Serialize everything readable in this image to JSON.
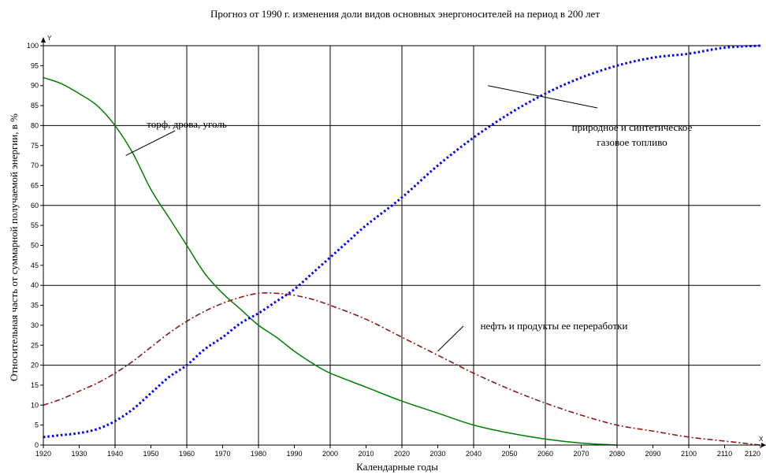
{
  "chart_data": {
    "type": "line",
    "title": "Прогноз от 1990 г. изменения доли видов основных энергоносителей на период  в 200 лет",
    "xlabel": "Календарные годы",
    "ylabel": "Относительная часть от суммарной  получаемой энергии,  в %",
    "x_axis_letter": "X",
    "y_axis_letter": "Y",
    "xlim": [
      1920,
      2120
    ],
    "ylim": [
      0,
      100
    ],
    "x_ticks": [
      1920,
      1930,
      1940,
      1950,
      1960,
      1970,
      1980,
      1990,
      2000,
      2010,
      2020,
      2030,
      2040,
      2050,
      2060,
      2070,
      2080,
      2090,
      2100,
      2110,
      2120
    ],
    "y_ticks": [
      0,
      5,
      10,
      15,
      20,
      25,
      30,
      35,
      40,
      45,
      50,
      55,
      60,
      65,
      70,
      75,
      80,
      85,
      90,
      95,
      100
    ],
    "grid_x": [
      1940,
      1960,
      1980,
      2000,
      2020,
      2040,
      2060,
      2080,
      2100
    ],
    "grid_y": [
      20,
      40,
      60,
      80,
      100
    ],
    "series": [
      {
        "name": "торф, дрова, уголь",
        "color": "#008000",
        "style": "solid",
        "x": [
          1920,
          1925,
          1930,
          1935,
          1940,
          1945,
          1950,
          1955,
          1960,
          1965,
          1970,
          1975,
          1980,
          1985,
          1990,
          1995,
          2000,
          2010,
          2020,
          2030,
          2040,
          2050,
          2060,
          2070,
          2080
        ],
        "y": [
          92,
          90.5,
          88,
          85,
          80,
          73,
          64,
          57,
          50,
          43,
          38,
          34,
          30,
          27,
          23.5,
          20.5,
          18,
          14.5,
          11,
          8,
          5,
          3,
          1.5,
          0.5,
          0
        ]
      },
      {
        "name": "природное и синтетическое газовое топливо",
        "color": "#0000ff",
        "style": "dotted",
        "x": [
          1920,
          1925,
          1930,
          1935,
          1940,
          1945,
          1950,
          1955,
          1960,
          1965,
          1970,
          1975,
          1980,
          1985,
          1990,
          1995,
          2000,
          2005,
          2010,
          2020,
          2030,
          2040,
          2050,
          2060,
          2070,
          2080,
          2090,
          2100,
          2110,
          2120
        ],
        "y": [
          2,
          2.5,
          3,
          4,
          6,
          9,
          13,
          17,
          20,
          24,
          27,
          30.5,
          33,
          36,
          39,
          43,
          47,
          51,
          55,
          62,
          70,
          77,
          83,
          88,
          92,
          95,
          97,
          98,
          99.5,
          100
        ]
      },
      {
        "name": "нефть и продукты ее переработки",
        "color": "#8b1a1a",
        "style": "dashdot",
        "x": [
          1920,
          1925,
          1930,
          1935,
          1940,
          1945,
          1950,
          1955,
          1960,
          1965,
          1970,
          1975,
          1980,
          1985,
          1990,
          1995,
          2000,
          2010,
          2020,
          2030,
          2040,
          2050,
          2060,
          2070,
          2080,
          2090,
          2100,
          2110,
          2120
        ],
        "y": [
          10,
          11.5,
          13.5,
          15.5,
          18,
          21,
          24.5,
          28,
          31,
          33.5,
          35.5,
          37,
          38,
          38,
          37.5,
          36.5,
          35,
          31.5,
          27,
          22.5,
          18,
          14,
          10.5,
          7.5,
          5,
          3.5,
          2,
          1,
          0
        ]
      }
    ],
    "annotations": [
      {
        "text": "торф, дрова, уголь",
        "series": 0
      },
      {
        "text": "природное и синтетическое",
        "series": 1
      },
      {
        "text": "газовое топливо",
        "series": 1
      },
      {
        "text": "нефть и продукты ее переработки",
        "series": 2
      }
    ]
  }
}
